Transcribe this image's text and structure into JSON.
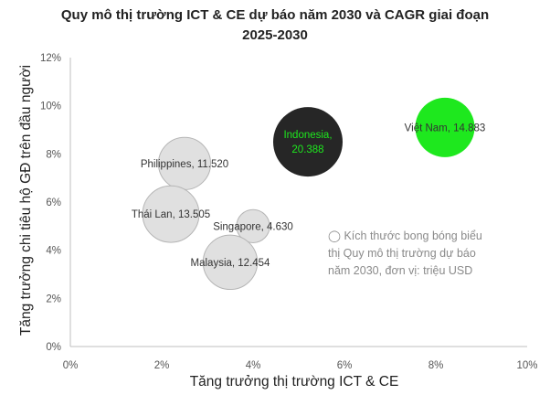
{
  "chart_data": {
    "type": "bubble",
    "title_lines": [
      "Quy mô thị trường ICT & CE dự báo năm 2030 và CAGR giai đoạn",
      "2025-2030"
    ],
    "xlabel": "Tăng trưởng thị trường ICT & CE",
    "ylabel": "Tăng trưởng chi tiêu hộ GĐ trên đầu người",
    "xlim": [
      0,
      10
    ],
    "ylim": [
      0,
      12
    ],
    "x_ticks": [
      "0%",
      "2%",
      "4%",
      "6%",
      "8%",
      "10%"
    ],
    "y_ticks": [
      "0%",
      "2%",
      "4%",
      "6%",
      "8%",
      "10%",
      "12%"
    ],
    "grid": false,
    "points": [
      {
        "label": "Philippines, 11.520",
        "x": 2.5,
        "y": 7.6,
        "size": 11.52,
        "color": "#e0e0e0"
      },
      {
        "label": "Thái Lan, 13.505",
        "x": 2.2,
        "y": 5.5,
        "size": 13.505,
        "color": "#e0e0e0"
      },
      {
        "label": "Singapore, 4.630",
        "x": 4.0,
        "y": 5.0,
        "size": 4.63,
        "color": "#e0e0e0"
      },
      {
        "label": "Malaysia, 12.454",
        "x": 3.5,
        "y": 3.5,
        "size": 12.454,
        "color": "#e0e0e0"
      },
      {
        "label_lines": [
          "Indonesia,",
          "20.388"
        ],
        "x": 5.2,
        "y": 8.5,
        "size": 20.388,
        "color": "#262626",
        "text_color": "#1ee81e"
      },
      {
        "label": "Việt Nam, 14.883",
        "x": 8.2,
        "y": 9.1,
        "size": 14.883,
        "color": "#1ee81e"
      }
    ],
    "note_lines": [
      "◯ Kích thước bong bóng biểu",
      "thị Quy mô thị trường dự báo",
      "năm 2030, đơn vị: triệu USD"
    ]
  }
}
